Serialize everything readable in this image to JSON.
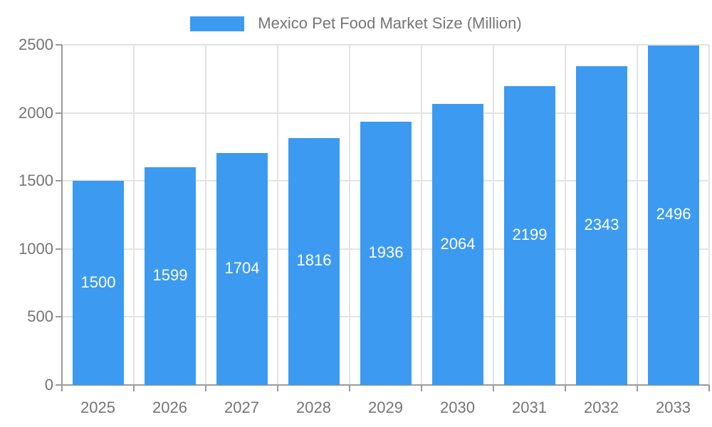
{
  "legend": {
    "label": "Mexico Pet Food Market Size (Million)"
  },
  "chart_data": {
    "type": "bar",
    "title": "Mexico Pet Food Market Size (Million)",
    "categories": [
      "2025",
      "2026",
      "2027",
      "2028",
      "2029",
      "2030",
      "2031",
      "2032",
      "2033"
    ],
    "values": [
      1500,
      1599,
      1704,
      1816,
      1936,
      2064,
      2199,
      2343,
      2496
    ],
    "xlabel": "",
    "ylabel": "",
    "ylim": [
      0,
      2500
    ],
    "yticks": [
      0,
      500,
      1000,
      1500,
      2000,
      2500
    ],
    "grid": true,
    "legend_position": "top-center",
    "value_label_position": "inside-middle"
  },
  "colors": {
    "bar": "#3C9BF0",
    "axis_line": "#999999",
    "grid_line": "#E3E3E3",
    "tick_label": "#757575",
    "legend_text": "#757575",
    "value_label": "#FFFFFF",
    "background": "#FFFFFF"
  }
}
